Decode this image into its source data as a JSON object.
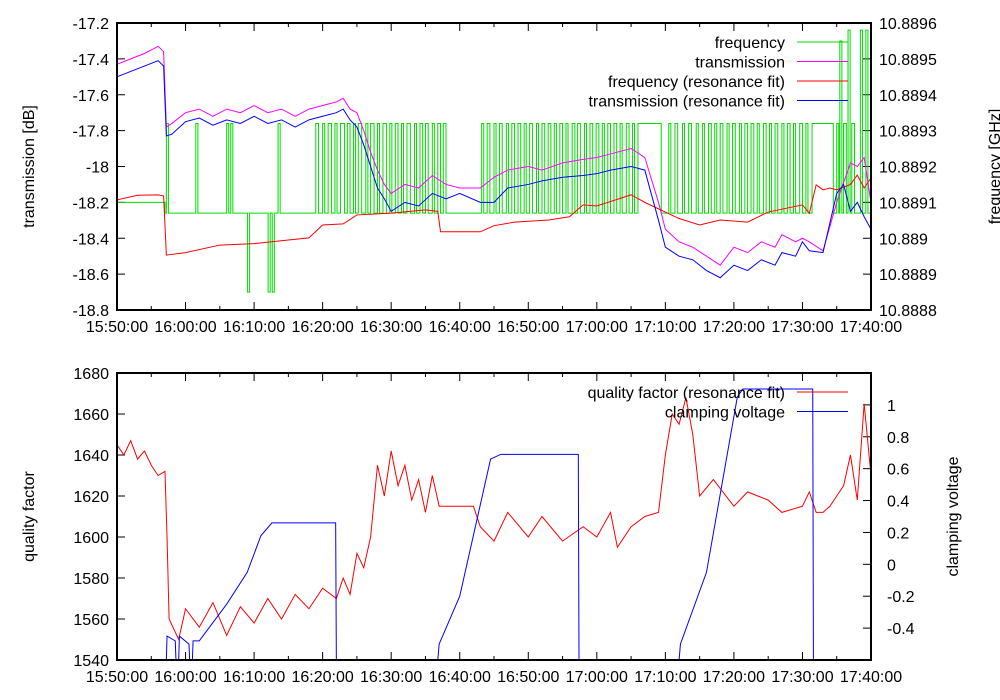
{
  "chart_data": [
    {
      "type": "line",
      "title": "",
      "xlabel": "",
      "ylabel": "transmission [dB]",
      "y2label": "frequency [GHz]",
      "x_unit": "minutes after 15:50:00",
      "xlim": [
        0,
        110
      ],
      "ylim": [
        -18.8,
        -17.2
      ],
      "y2lim": [
        10.8888,
        10.8896
      ],
      "xticks": [
        "15:50:00",
        "16:00:00",
        "16:10:00",
        "16:20:00",
        "16:30:00",
        "16:40:00",
        "16:50:00",
        "17:00:00",
        "17:10:00",
        "17:20:00",
        "17:30:00",
        "17:40:00"
      ],
      "yticks": [
        "-17.2",
        "-17.4",
        "-17.6",
        "-17.8",
        "-18",
        "-18.2",
        "-18.4",
        "-18.6",
        "-18.8"
      ],
      "y2ticks": [
        "10.8896",
        "10.8895",
        "10.8894",
        "10.8893",
        "10.8892",
        "10.8891",
        "10.889",
        "10.8889",
        "10.8888"
      ],
      "legend_position": "top-right",
      "series": [
        {
          "name": "frequency",
          "axis": "y2",
          "color": "#00dd00",
          "kind": "step",
          "low": 10.88907,
          "high": 10.88932,
          "start_value": 10.8891,
          "high_intervals": [
            [
              7.2,
              7.5
            ],
            [
              11.5,
              11.8
            ],
            [
              16,
              16.3
            ],
            [
              16.6,
              16.9
            ],
            [
              23.5,
              23.8
            ],
            [
              29,
              29.4
            ],
            [
              30,
              30.3
            ],
            [
              30.8,
              31.3
            ],
            [
              31.8,
              32.1
            ],
            [
              32.6,
              33.2
            ],
            [
              33.6,
              34
            ],
            [
              34.5,
              34.8
            ],
            [
              35.2,
              35.7
            ],
            [
              36.3,
              36.6
            ],
            [
              37,
              37.5
            ],
            [
              38,
              38.3
            ],
            [
              38.8,
              39.3
            ],
            [
              39.8,
              40.1
            ],
            [
              40.6,
              41
            ],
            [
              41.5,
              41.8
            ],
            [
              42.3,
              42.8
            ],
            [
              43.4,
              43.7
            ],
            [
              44.2,
              44.6
            ],
            [
              45,
              45.4
            ],
            [
              46,
              46.3
            ],
            [
              46.8,
              47.2
            ],
            [
              47.6,
              48
            ],
            [
              53.2,
              53.5
            ],
            [
              54,
              54.4
            ],
            [
              55,
              55.3
            ],
            [
              55.8,
              56.2
            ],
            [
              56.8,
              57.1
            ],
            [
              57.6,
              58
            ],
            [
              58.5,
              58.9
            ],
            [
              59.4,
              59.7
            ],
            [
              60.2,
              60.6
            ],
            [
              61.2,
              61.5
            ],
            [
              62,
              62.4
            ],
            [
              62.9,
              63.3
            ],
            [
              63.8,
              64.1
            ],
            [
              64.6,
              65
            ],
            [
              65.5,
              65.8
            ],
            [
              66.4,
              66.8
            ],
            [
              67.2,
              67.6
            ],
            [
              68.2,
              68.5
            ],
            [
              69,
              69.4
            ],
            [
              69.9,
              70.3
            ],
            [
              70.8,
              71.1
            ],
            [
              71.6,
              72
            ],
            [
              72.5,
              72.9
            ],
            [
              73.4,
              73.7
            ],
            [
              74.3,
              74.7
            ],
            [
              75.2,
              75.5
            ],
            [
              76,
              79.4
            ],
            [
              80.5,
              80.8
            ],
            [
              81.4,
              81.8
            ],
            [
              82.5,
              82.8
            ],
            [
              83.4,
              83.8
            ],
            [
              84.5,
              84.8
            ],
            [
              85.4,
              85.7
            ],
            [
              86.3,
              86.7
            ],
            [
              87.2,
              87.5
            ],
            [
              88,
              88.4
            ],
            [
              89,
              89.3
            ],
            [
              89.8,
              90.2
            ],
            [
              90.8,
              91.1
            ],
            [
              91.6,
              92
            ],
            [
              92.5,
              92.9
            ],
            [
              93.4,
              93.7
            ],
            [
              94.3,
              94.7
            ],
            [
              95.2,
              95.5
            ],
            [
              96,
              96.4
            ],
            [
              97,
              97.3
            ],
            [
              97.8,
              98.2
            ],
            [
              98.7,
              99
            ],
            [
              99.6,
              100
            ],
            [
              100.5,
              100.8
            ],
            [
              101.4,
              104.5
            ],
            [
              105,
              105.3
            ],
            [
              106,
              106.4
            ],
            [
              107.2,
              107.6
            ]
          ],
          "peaks": [
            [
              105.6,
              10.88955
            ],
            [
              106.8,
              10.88958
            ],
            [
              108.6,
              10.88958
            ],
            [
              109.4,
              10.88958
            ]
          ],
          "dips": [
            [
              19.2,
              10.88885
            ],
            [
              22.2,
              10.88885
            ],
            [
              22.8,
              10.88885
            ]
          ]
        },
        {
          "name": "transmission",
          "axis": "y",
          "color": "#ff00ff",
          "t": [
            0,
            2,
            4,
            5,
            6,
            6.8,
            7.2,
            8,
            10,
            12,
            14,
            16,
            18,
            20,
            22,
            24,
            26,
            28,
            30,
            32,
            33,
            34,
            35,
            36,
            37,
            38,
            39,
            40,
            42,
            44,
            46,
            48,
            50,
            53,
            55,
            57,
            60,
            62,
            65,
            68,
            70,
            72,
            75,
            77,
            79,
            80,
            82,
            84,
            86,
            88,
            90,
            92,
            94,
            96,
            97,
            99,
            100,
            101,
            103,
            105,
            107,
            108,
            109,
            110
          ],
          "v": [
            -17.43,
            -17.4,
            -17.37,
            -17.35,
            -17.33,
            -17.36,
            -17.78,
            -17.76,
            -17.7,
            -17.68,
            -17.72,
            -17.68,
            -17.7,
            -17.66,
            -17.7,
            -17.68,
            -17.72,
            -17.68,
            -17.66,
            -17.64,
            -17.62,
            -17.68,
            -17.7,
            -17.8,
            -17.92,
            -18.02,
            -18.1,
            -18.15,
            -18.1,
            -18.12,
            -18.05,
            -18.1,
            -18.12,
            -18.12,
            -18.06,
            -18.02,
            -18.0,
            -18.02,
            -17.98,
            -17.96,
            -17.95,
            -17.93,
            -17.9,
            -17.95,
            -18.2,
            -18.35,
            -18.42,
            -18.45,
            -18.5,
            -18.55,
            -18.45,
            -18.48,
            -18.42,
            -18.45,
            -18.38,
            -18.42,
            -18.4,
            -18.42,
            -18.47,
            -18.2,
            -17.98,
            -18.0,
            -17.95,
            -18.2
          ]
        },
        {
          "name": "frequency (resonance fit)",
          "axis": "y2",
          "color": "#ff0000",
          "t": [
            0,
            3,
            6,
            6.8,
            7.2,
            10,
            15,
            20,
            25,
            28,
            30,
            33,
            35,
            40,
            45,
            46.8,
            47.2,
            53,
            55,
            58,
            63,
            66,
            68,
            70,
            75,
            77,
            80,
            82,
            85,
            88,
            92,
            95,
            100,
            101,
            102,
            103,
            104,
            105,
            107,
            108,
            109,
            110
          ],
          "v": [
            10.889107,
            10.88912,
            10.889121,
            10.889118,
            10.888953,
            10.88896,
            10.888981,
            10.888985,
            10.888995,
            10.889001,
            10.889037,
            10.88904,
            10.889065,
            10.88907,
            10.889079,
            10.889075,
            10.889018,
            10.889018,
            10.889035,
            10.889045,
            10.889051,
            10.88906,
            10.889093,
            10.88909,
            10.889121,
            10.8891,
            10.889073,
            10.889055,
            10.889037,
            10.889051,
            10.889045,
            10.889073,
            10.889093,
            10.88907,
            10.889149,
            10.889135,
            10.88914,
            10.889135,
            10.88915,
            10.889176,
            10.88914,
            10.889168
          ]
        },
        {
          "name": "transmission (resonance fit)",
          "axis": "y",
          "color": "#0000ff",
          "t": [
            0,
            2,
            4,
            6,
            6.8,
            7.2,
            8,
            10,
            12,
            14,
            16,
            18,
            20,
            22,
            24,
            26,
            28,
            30,
            32,
            33,
            34,
            35,
            36,
            37,
            38,
            39,
            40,
            42,
            44,
            46,
            48,
            50,
            53,
            55,
            57,
            60,
            62,
            65,
            68,
            70,
            72,
            75,
            77,
            79,
            80,
            82,
            84,
            86,
            88,
            90,
            92,
            94,
            96,
            97,
            99,
            100,
            101,
            103,
            105,
            106,
            107,
            108,
            109,
            110
          ],
          "v": [
            -17.5,
            -17.47,
            -17.44,
            -17.41,
            -17.44,
            -17.83,
            -17.82,
            -17.75,
            -17.73,
            -17.77,
            -17.74,
            -17.76,
            -17.72,
            -17.76,
            -17.74,
            -17.78,
            -17.74,
            -17.72,
            -17.7,
            -17.68,
            -17.74,
            -17.78,
            -17.88,
            -18.0,
            -18.12,
            -18.18,
            -18.25,
            -18.2,
            -18.22,
            -18.15,
            -18.18,
            -18.15,
            -18.2,
            -18.2,
            -18.12,
            -18.1,
            -18.08,
            -18.06,
            -18.05,
            -18.04,
            -18.02,
            -18.0,
            -18.02,
            -18.3,
            -18.45,
            -18.5,
            -18.52,
            -18.58,
            -18.62,
            -18.55,
            -18.58,
            -18.52,
            -18.55,
            -18.48,
            -18.5,
            -18.42,
            -18.47,
            -18.48,
            -18.15,
            -18.1,
            -18.25,
            -18.2,
            -18.28,
            -18.35
          ]
        }
      ]
    },
    {
      "type": "line",
      "title": "",
      "xlabel": "",
      "ylabel": "quality factor",
      "y2label": "clamping voltage",
      "x_unit": "minutes after 15:50:00",
      "xlim": [
        0,
        110
      ],
      "ylim": [
        1540,
        1680
      ],
      "y2lim": [
        -0.6,
        1.2
      ],
      "xticks": [
        "15:50:00",
        "16:00:00",
        "16:10:00",
        "16:20:00",
        "16:30:00",
        "16:40:00",
        "16:50:00",
        "17:00:00",
        "17:10:00",
        "17:20:00",
        "17:30:00",
        "17:40:00"
      ],
      "yticks": [
        "1540",
        "1560",
        "1580",
        "1600",
        "1620",
        "1640",
        "1660",
        "1680"
      ],
      "y2ticks": [
        "-0.4",
        "-0.2",
        "0",
        "0.2",
        "0.4",
        "0.6",
        "0.8",
        "1"
      ],
      "legend_position": "top-right",
      "series": [
        {
          "name": "quality factor (resonance fit)",
          "axis": "y",
          "color": "#ff0000",
          "t": [
            0,
            1,
            2,
            3,
            4,
            5,
            6,
            7,
            7.3,
            7.6,
            9,
            10,
            12,
            14,
            16,
            18,
            20,
            22,
            24,
            26,
            28,
            30,
            32,
            33,
            34,
            35,
            36,
            37,
            38,
            39,
            40,
            41,
            42,
            43,
            44,
            45,
            46,
            47,
            52,
            53,
            55,
            57,
            60,
            62,
            65,
            68,
            70,
            72,
            73,
            75,
            77,
            79,
            80,
            81,
            82,
            83,
            84,
            85,
            87,
            90,
            92,
            95,
            97,
            100,
            101,
            102,
            103,
            104,
            105,
            106,
            107,
            108,
            109,
            110
          ],
          "v": [
            1645,
            1640,
            1647,
            1638,
            1642,
            1635,
            1630,
            1632,
            1600,
            1560,
            1550,
            1565,
            1556,
            1568,
            1552,
            1566,
            1558,
            1570,
            1560,
            1572,
            1565,
            1575,
            1570,
            1580,
            1572,
            1592,
            1585,
            1600,
            1635,
            1620,
            1642,
            1625,
            1635,
            1618,
            1628,
            1612,
            1630,
            1615,
            1615,
            1605,
            1598,
            1612,
            1600,
            1610,
            1598,
            1605,
            1600,
            1612,
            1595,
            1605,
            1610,
            1612,
            1640,
            1660,
            1655,
            1668,
            1650,
            1620,
            1628,
            1615,
            1622,
            1618,
            1612,
            1615,
            1622,
            1612,
            1612,
            1615,
            1620,
            1625,
            1640,
            1618,
            1665,
            1630
          ]
        },
        {
          "name": "clamping voltage",
          "axis": "y2",
          "color": "#0000ff",
          "t": [
            7.2,
            7.3,
            8.5,
            8.6,
            9,
            9.1,
            10.5,
            10.6,
            11,
            11.1,
            12,
            16,
            19,
            21,
            22.6,
            31.9,
            32,
            46.8,
            47,
            50,
            54.5,
            56,
            67.3,
            67.4,
            82,
            82.2,
            86,
            90.5,
            91.3,
            101.5,
            101.6
          ],
          "v": [
            -0.6,
            -0.45,
            -0.48,
            -0.6,
            -0.6,
            -0.45,
            -0.5,
            -0.6,
            -0.6,
            -0.48,
            -0.48,
            -0.25,
            -0.05,
            0.18,
            0.26,
            0.26,
            -0.6,
            -0.6,
            -0.5,
            -0.2,
            0.66,
            0.69,
            0.69,
            -0.6,
            -0.6,
            -0.5,
            -0.05,
            1.05,
            1.1,
            1.1,
            -0.6
          ]
        }
      ]
    }
  ]
}
